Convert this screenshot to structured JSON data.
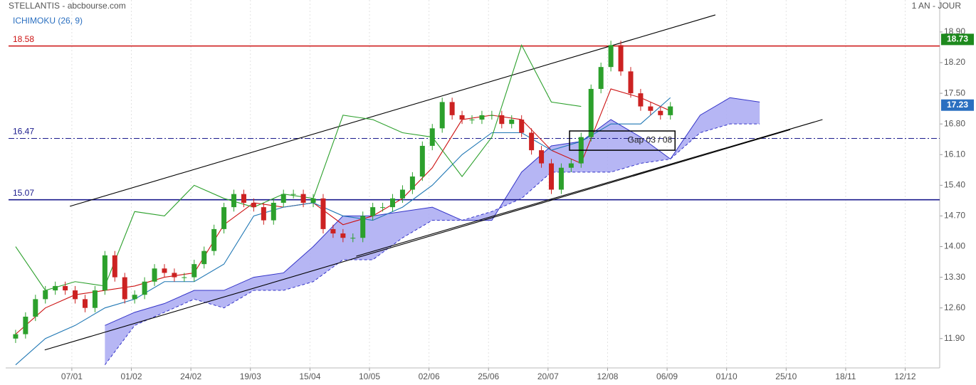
{
  "chart_data": {
    "type": "candlestick",
    "title": "STELLANTIS - abcbourse.com",
    "period": "1 AN - JOUR",
    "indicator": "ICHIMOKU (26, 9)",
    "xlim": [
      0,
      282
    ],
    "ylim": [
      11.23,
      19.63
    ],
    "xticks": [
      {
        "value": 20,
        "label": "07/01"
      },
      {
        "value": 38,
        "label": "01/02"
      },
      {
        "value": 56,
        "label": "24/02"
      },
      {
        "value": 74,
        "label": "19/03"
      },
      {
        "value": 92,
        "label": "15/04"
      },
      {
        "value": 110,
        "label": "10/05"
      },
      {
        "value": 128,
        "label": "02/06"
      },
      {
        "value": 146,
        "label": "25/06"
      },
      {
        "value": 164,
        "label": "20/07"
      },
      {
        "value": 182,
        "label": "12/08"
      },
      {
        "value": 200,
        "label": "06/09"
      },
      {
        "value": 218,
        "label": "01/10"
      },
      {
        "value": 236,
        "label": "25/10"
      },
      {
        "value": 254,
        "label": "18/11"
      },
      {
        "value": 272,
        "label": "12/12"
      }
    ],
    "yticks": [
      {
        "value": 11.9,
        "label": "11.90"
      },
      {
        "value": 12.6,
        "label": "12.60"
      },
      {
        "value": 13.3,
        "label": "13.30"
      },
      {
        "value": 14.0,
        "label": "14.00"
      },
      {
        "value": 14.7,
        "label": "14.70"
      },
      {
        "value": 15.4,
        "label": "15.40"
      },
      {
        "value": 16.1,
        "label": "16.10"
      },
      {
        "value": 16.8,
        "label": "16.80"
      },
      {
        "value": 17.5,
        "label": "17.50"
      },
      {
        "value": 18.2,
        "label": "18.20"
      },
      {
        "value": 18.9,
        "label": "18.90"
      }
    ],
    "grid": true,
    "candles": {
      "up_color": "#2ca02c",
      "down_color": "#cc2222",
      "x": [
        3,
        6,
        9,
        12,
        15,
        18,
        21,
        24,
        27,
        30,
        33,
        36,
        39,
        42,
        45,
        48,
        51,
        54,
        57,
        60,
        63,
        66,
        69,
        72,
        75,
        78,
        81,
        84,
        87,
        90,
        93,
        96,
        99,
        102,
        105,
        108,
        111,
        114,
        117,
        120,
        123,
        126,
        129,
        132,
        135,
        138,
        141,
        144,
        147,
        150,
        153,
        156,
        159,
        162,
        165,
        168,
        171,
        174,
        177,
        180,
        183,
        186,
        189,
        192,
        195,
        198,
        201
      ],
      "open": [
        11.9,
        12.0,
        12.4,
        12.8,
        13.0,
        13.1,
        13.0,
        12.8,
        12.6,
        13.0,
        13.8,
        13.3,
        12.8,
        12.9,
        13.2,
        13.5,
        13.4,
        13.3,
        13.3,
        13.6,
        13.9,
        14.4,
        14.9,
        15.2,
        15.0,
        14.9,
        14.6,
        15.0,
        15.2,
        15.2,
        15.0,
        15.1,
        14.4,
        14.3,
        14.2,
        14.2,
        14.7,
        14.9,
        14.9,
        15.1,
        15.3,
        15.6,
        16.3,
        16.7,
        17.3,
        17.0,
        16.9,
        16.9,
        17.0,
        17.0,
        16.8,
        16.9,
        16.6,
        16.2,
        15.9,
        15.3,
        15.8,
        15.9,
        16.5,
        17.6,
        18.1,
        18.6,
        18.0,
        17.5,
        17.2,
        17.1,
        17.0
      ],
      "high": [
        12.1,
        12.5,
        12.9,
        13.1,
        13.2,
        13.2,
        13.1,
        12.9,
        13.1,
        13.9,
        13.9,
        13.4,
        13.0,
        13.3,
        13.6,
        13.6,
        13.5,
        13.4,
        13.7,
        14.0,
        14.5,
        15.0,
        15.3,
        15.3,
        15.1,
        15.0,
        15.1,
        15.3,
        15.3,
        15.3,
        15.2,
        15.2,
        14.5,
        14.4,
        14.3,
        14.8,
        15.0,
        15.0,
        15.2,
        15.4,
        15.7,
        16.4,
        16.8,
        17.4,
        17.4,
        17.1,
        17.0,
        17.1,
        17.1,
        17.1,
        17.0,
        17.0,
        16.7,
        16.3,
        16.0,
        15.9,
        16.0,
        16.6,
        17.7,
        18.2,
        18.7,
        18.7,
        18.1,
        17.6,
        17.3,
        17.2,
        17.3
      ],
      "low": [
        11.8,
        11.9,
        12.3,
        12.7,
        12.9,
        12.9,
        12.7,
        12.5,
        12.5,
        12.9,
        13.2,
        12.7,
        12.7,
        12.8,
        13.1,
        13.3,
        13.2,
        13.2,
        13.2,
        13.5,
        13.8,
        14.3,
        14.8,
        14.9,
        14.8,
        14.5,
        14.5,
        14.9,
        15.1,
        14.9,
        14.9,
        14.3,
        14.2,
        14.1,
        14.1,
        14.1,
        14.6,
        14.8,
        14.8,
        15.0,
        15.2,
        15.5,
        16.2,
        16.6,
        16.9,
        16.8,
        16.8,
        16.8,
        16.9,
        16.7,
        16.7,
        16.5,
        16.1,
        15.8,
        15.2,
        15.2,
        15.7,
        15.8,
        16.4,
        17.5,
        18.0,
        17.9,
        17.4,
        17.1,
        17.0,
        16.9,
        16.9
      ],
      "close": [
        12.0,
        12.4,
        12.8,
        13.0,
        13.1,
        13.0,
        12.8,
        12.6,
        13.0,
        13.8,
        13.3,
        12.8,
        12.9,
        13.2,
        13.5,
        13.4,
        13.3,
        13.3,
        13.6,
        13.9,
        14.4,
        14.9,
        15.2,
        15.0,
        14.9,
        14.6,
        15.0,
        15.2,
        15.2,
        15.0,
        15.1,
        14.4,
        14.3,
        14.2,
        14.2,
        14.7,
        14.9,
        14.9,
        15.1,
        15.3,
        15.6,
        16.3,
        16.7,
        17.3,
        17.0,
        16.9,
        16.9,
        17.0,
        17.0,
        16.8,
        16.9,
        16.6,
        16.2,
        15.9,
        15.3,
        15.8,
        15.9,
        16.5,
        17.6,
        18.1,
        18.6,
        18.0,
        17.5,
        17.2,
        17.1,
        17.0,
        17.2
      ]
    },
    "cloud": {
      "fill": "#a9a9f2",
      "edge": "#3434c8",
      "x": [
        30,
        39,
        48,
        57,
        66,
        75,
        84,
        93,
        102,
        111,
        120,
        129,
        138,
        147,
        156,
        165,
        174,
        183,
        192,
        201,
        210,
        219,
        228
      ],
      "span_a": [
        12.2,
        12.5,
        12.7,
        13.0,
        13.0,
        13.3,
        13.4,
        14.0,
        14.7,
        14.7,
        14.8,
        14.9,
        14.6,
        14.6,
        15.7,
        16.3,
        16.4,
        16.9,
        16.5,
        16.0,
        17.0,
        17.4,
        17.3
      ],
      "span_b": [
        11.3,
        12.2,
        12.5,
        12.8,
        12.6,
        13.0,
        13.0,
        13.2,
        13.7,
        13.7,
        14.2,
        14.6,
        14.6,
        14.8,
        15.1,
        15.7,
        15.7,
        15.7,
        15.9,
        16.0,
        16.6,
        16.8,
        16.8
      ]
    },
    "series": [
      {
        "color": "#cc1111",
        "x": [
          3,
          12,
          21,
          30,
          39,
          48,
          57,
          66,
          75,
          84,
          93,
          102,
          111,
          120,
          129,
          138,
          147,
          156,
          165,
          174,
          183,
          192,
          201
        ],
        "values": [
          12.0,
          12.6,
          12.9,
          13.0,
          13.1,
          13.3,
          13.4,
          14.5,
          15.0,
          14.9,
          15.0,
          14.5,
          14.7,
          15.1,
          15.8,
          16.9,
          17.0,
          16.9,
          16.2,
          15.9,
          17.6,
          17.4,
          17.1
        ]
      },
      {
        "color": "#1f77b4",
        "x": [
          3,
          12,
          21,
          30,
          39,
          48,
          57,
          66,
          75,
          84,
          93,
          102,
          111,
          120,
          129,
          138,
          147,
          156,
          165,
          174,
          183,
          192,
          201
        ],
        "values": [
          11.3,
          11.9,
          12.2,
          12.6,
          12.8,
          13.2,
          13.2,
          13.6,
          14.7,
          14.9,
          15.0,
          14.7,
          14.6,
          14.9,
          15.4,
          16.1,
          16.6,
          16.6,
          16.2,
          16.4,
          16.8,
          16.8,
          17.4
        ]
      },
      {
        "color": "#2ca02c",
        "x": [
          3,
          12,
          21,
          30,
          39,
          48,
          57,
          66,
          75,
          84,
          93,
          102,
          111,
          120,
          129,
          138,
          147,
          156,
          165,
          174
        ],
        "values": [
          14.0,
          13.0,
          13.2,
          13.1,
          14.8,
          14.7,
          15.4,
          15.1,
          14.9,
          15.2,
          15.1,
          17.0,
          16.9,
          16.6,
          16.5,
          15.6,
          16.5,
          18.6,
          17.3,
          17.2
        ]
      }
    ],
    "levels": [
      {
        "value": 18.58,
        "color": "#cc1111",
        "style": "solid"
      },
      {
        "value": 16.47,
        "color": "#1a1a8c",
        "style": "dashdot"
      },
      {
        "value": 15.07,
        "color": "#1a1a8c",
        "style": "solid"
      }
    ],
    "trendlines": [
      {
        "x": [
          19.4,
          214.6
        ],
        "values": [
          14.92,
          19.29
        ],
        "color": "#000000"
      },
      {
        "x": [
          11.8,
          237.2
        ],
        "values": [
          11.64,
          16.67
        ],
        "color": "#000000"
      },
      {
        "x": [
          106,
          247
        ],
        "values": [
          13.78,
          16.9
        ],
        "color": "#000000"
      }
    ],
    "price_tags": [
      {
        "value": 18.73,
        "color": "#1e8a1e"
      },
      {
        "value": 17.23,
        "color": "#2a6fc0"
      }
    ],
    "annotation": {
      "text": "Gap 03 / 08",
      "x": [
        170.5,
        202.4
      ],
      "y": [
        16.64,
        16.2
      ]
    }
  }
}
